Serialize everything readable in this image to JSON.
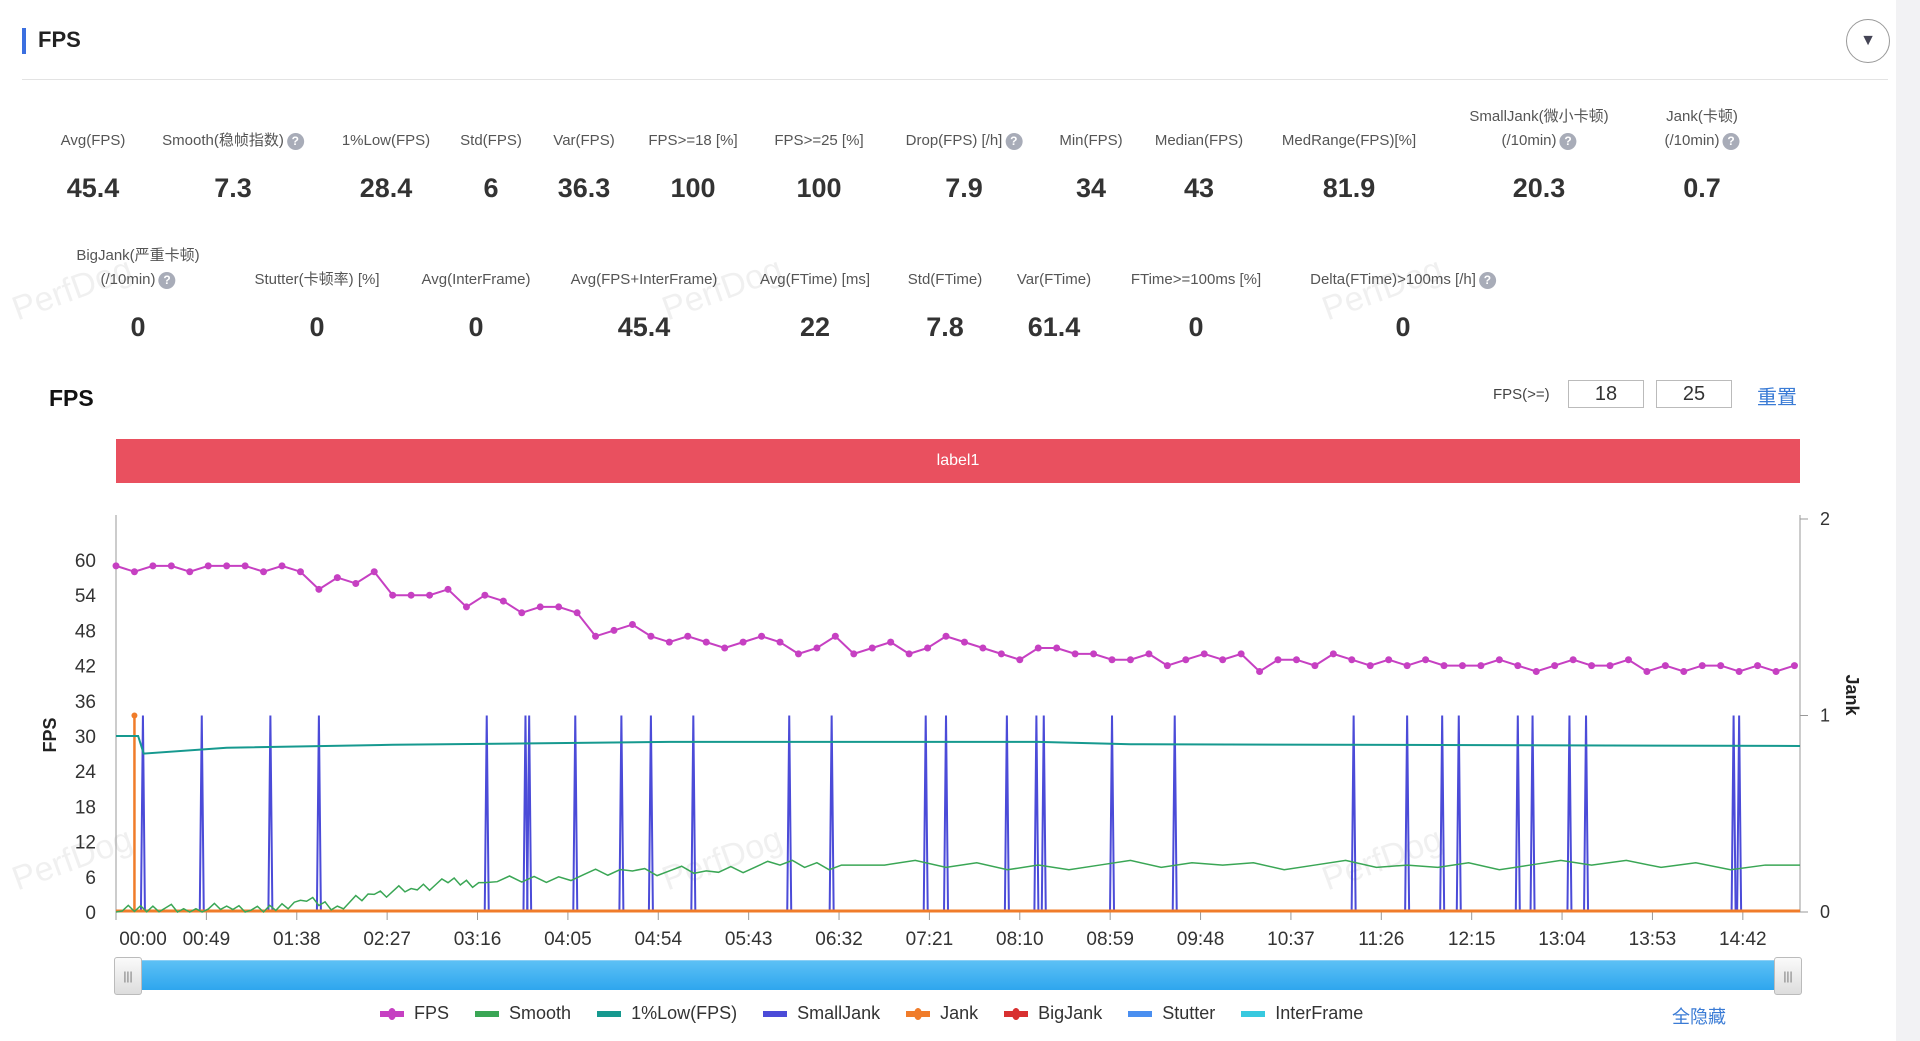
{
  "header": {
    "title": "FPS",
    "collapse_icon": "▼"
  },
  "stats_row1": [
    {
      "label": "Avg(FPS)",
      "value": "45.4"
    },
    {
      "label": "Smooth(稳帧指数)",
      "value": "7.3",
      "help": true
    },
    {
      "label": "1%Low(FPS)",
      "value": "28.4"
    },
    {
      "label": "Std(FPS)",
      "value": "6"
    },
    {
      "label": "Var(FPS)",
      "value": "36.3"
    },
    {
      "label": "FPS>=18 [%]",
      "value": "100"
    },
    {
      "label": "FPS>=25 [%]",
      "value": "100"
    },
    {
      "label": "Drop(FPS) [/h]",
      "value": "7.9",
      "help": true
    },
    {
      "label": "Min(FPS)",
      "value": "34"
    },
    {
      "label": "Median(FPS)",
      "value": "43"
    },
    {
      "label": "MedRange(FPS)[%]",
      "value": "81.9"
    },
    {
      "label": "SmallJank(微小卡顿)",
      "label2": "(/10min)",
      "value": "20.3",
      "help": true
    },
    {
      "label": "Jank(卡顿)",
      "label2": "(/10min)",
      "value": "0.7",
      "help": true
    }
  ],
  "stats_row2": [
    {
      "label": "BigJank(严重卡顿)",
      "label2": "(/10min)",
      "value": "0",
      "help": true
    },
    {
      "label": "Stutter(卡顿率) [%]",
      "value": "0"
    },
    {
      "label": "Avg(InterFrame)",
      "value": "0"
    },
    {
      "label": "Avg(FPS+InterFrame)",
      "value": "45.4"
    },
    {
      "label": "Avg(FTime) [ms]",
      "value": "22"
    },
    {
      "label": "Std(FTime)",
      "value": "7.8"
    },
    {
      "label": "Var(FTime)",
      "value": "61.4"
    },
    {
      "label": "FTime>=100ms [%]",
      "value": "0"
    },
    {
      "label": "Delta(FTime)>100ms [/h]",
      "value": "0",
      "help": true
    }
  ],
  "chart_section": {
    "title": "FPS",
    "threshold_label": "FPS(>=)",
    "threshold1": "18",
    "threshold2": "25",
    "reset_label": "重置",
    "label_bar": "label1",
    "watermark": "PerfDog"
  },
  "chart_data": {
    "type": "line",
    "title": "FPS",
    "ylabel": "FPS",
    "y2label": "Jank",
    "ylim": [
      0,
      63
    ],
    "y2lim": [
      0,
      2
    ],
    "yticks": [
      "0",
      "6",
      "12",
      "18",
      "24",
      "30",
      "36",
      "42",
      "48",
      "54",
      "60"
    ],
    "y2ticks": [
      "0",
      "1",
      "2"
    ],
    "xlim_seconds": [
      0,
      913
    ],
    "xticks": [
      "00:00",
      "00:49",
      "01:38",
      "02:27",
      "03:16",
      "04:05",
      "04:54",
      "05:43",
      "06:32",
      "07:21",
      "08:10",
      "08:59",
      "09:48",
      "10:37",
      "11:26",
      "12:15",
      "13:04",
      "13:53",
      "14:42"
    ],
    "fps_step_seconds": 10,
    "fps": [
      59,
      58,
      59,
      59,
      58,
      59,
      59,
      59,
      58,
      59,
      58,
      55,
      57,
      56,
      58,
      54,
      54,
      54,
      55,
      52,
      54,
      53,
      51,
      52,
      52,
      51,
      47,
      48,
      49,
      47,
      46,
      47,
      46,
      45,
      46,
      47,
      46,
      44,
      45,
      47,
      44,
      45,
      46,
      44,
      45,
      47,
      46,
      45,
      44,
      43,
      45,
      45,
      44,
      44,
      43,
      43,
      44,
      42,
      43,
      44,
      43,
      44,
      41,
      43,
      43,
      42,
      44,
      43,
      42,
      43,
      42,
      43,
      42,
      42,
      42,
      43,
      42,
      41,
      42,
      43,
      42,
      42,
      43,
      41,
      42,
      41,
      42,
      42,
      41,
      42,
      41,
      42
    ],
    "low1_points": [
      [
        0,
        30
      ],
      [
        12,
        30
      ],
      [
        15,
        27
      ],
      [
        60,
        28
      ],
      [
        150,
        28.5
      ],
      [
        300,
        29
      ],
      [
        500,
        29
      ],
      [
        550,
        28.6
      ],
      [
        913,
        28.3
      ]
    ],
    "smooth_points": [
      [
        0,
        0
      ],
      [
        20,
        1
      ],
      [
        40,
        0
      ],
      [
        60,
        1
      ],
      [
        80,
        0
      ],
      [
        100,
        2
      ],
      [
        120,
        1
      ],
      [
        140,
        3
      ],
      [
        160,
        4
      ],
      [
        180,
        5
      ],
      [
        200,
        5
      ],
      [
        240,
        6
      ],
      [
        280,
        7
      ],
      [
        320,
        7
      ],
      [
        360,
        8
      ],
      [
        400,
        8
      ],
      [
        500,
        8
      ],
      [
        600,
        8
      ],
      [
        700,
        8
      ],
      [
        800,
        8
      ],
      [
        913,
        8
      ]
    ],
    "smalljank_seconds": [
      14.6,
      46.5,
      83.7,
      110,
      201,
      222,
      224,
      249,
      274,
      290,
      313,
      365,
      388,
      439,
      450,
      483,
      499,
      503,
      540,
      574,
      671,
      700,
      719,
      728,
      760,
      768,
      788,
      797,
      877,
      880
    ],
    "jank_seconds": [
      10
    ],
    "legend": [
      {
        "name": "FPS",
        "color": "#c640c2"
      },
      {
        "name": "Smooth",
        "color": "#3aa655"
      },
      {
        "name": "1%Low(FPS)",
        "color": "#16998f"
      },
      {
        "name": "SmallJank",
        "color": "#4b4bd8"
      },
      {
        "name": "Jank",
        "color": "#f07c2a"
      },
      {
        "name": "BigJank",
        "color": "#d83030"
      },
      {
        "name": "Stutter",
        "color": "#4a8ff0"
      },
      {
        "name": "InterFrame",
        "color": "#38c9df"
      }
    ],
    "hide_all_label": "全隐藏"
  }
}
